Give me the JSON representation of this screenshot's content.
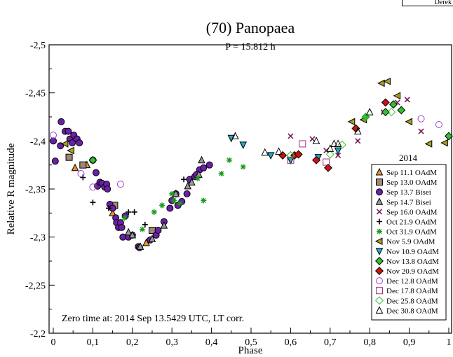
{
  "corner_label": "Derek",
  "chart_data": {
    "type": "scatter",
    "title": "(70) Panopaea",
    "subtitle": "P = 15.812 h",
    "xlabel": "Phase",
    "ylabel": "Relative R magnitude",
    "xlim": [
      0,
      1
    ],
    "ylim": [
      -2.2,
      -2.5
    ],
    "y_inverted": true,
    "x_ticks": [
      0,
      0.1,
      0.2,
      0.3,
      0.4,
      0.5,
      0.6,
      0.7,
      0.8,
      0.9,
      1
    ],
    "x_tick_labels": [
      "0",
      "0,1",
      "0,2",
      "0,3",
      "0,4",
      "0,5",
      "0,6",
      "0,7",
      "0,8",
      "0,9",
      "1"
    ],
    "y_ticks": [
      -2.2,
      -2.25,
      -2.3,
      -2.35,
      -2.4,
      -2.45,
      -2.5
    ],
    "y_tick_labels": [
      "-2,2",
      "-2,25",
      "-2,3",
      "-2,35",
      "-2,4",
      "-2,45",
      "-2,5"
    ],
    "annotation": "Zero time at: 2014 Sep 13.5429 UTC, LT corr.",
    "legend_title": "2014",
    "legend_position": "right",
    "series": [
      {
        "name": "Sep 11.1 OAdM",
        "marker": "triangle-up",
        "color": "#e8962a",
        "points": [
          [
            0.055,
            -2.372
          ],
          [
            0.15,
            -2.325
          ],
          [
            0.235,
            -2.294
          ],
          [
            0.085,
            -2.375
          ]
        ]
      },
      {
        "name": "Sep 13.0 OAdM",
        "marker": "square",
        "color": "#a08878",
        "points": [
          [
            0.04,
            -2.383
          ],
          [
            0.075,
            -2.375
          ],
          [
            0.155,
            -2.333
          ],
          [
            0.25,
            -2.307
          ]
        ]
      },
      {
        "name": "Sep 13.7 Bisei",
        "marker": "circle",
        "color": "#6a20a8",
        "points": [
          [
            0,
            -2.4
          ],
          [
            0.005,
            -2.379
          ],
          [
            0.018,
            -2.395
          ],
          [
            0.02,
            -2.42
          ],
          [
            0.03,
            -2.41
          ],
          [
            0.038,
            -2.41
          ],
          [
            0.042,
            -2.402
          ],
          [
            0.048,
            -2.398
          ],
          [
            0.052,
            -2.406
          ],
          [
            0.06,
            -2.402
          ],
          [
            0.066,
            -2.398
          ],
          [
            0.1,
            -2.38
          ],
          [
            0.108,
            -2.367
          ],
          [
            0.112,
            -2.353
          ],
          [
            0.118,
            -2.357
          ],
          [
            0.123,
            -2.356
          ],
          [
            0.13,
            -2.352
          ],
          [
            0.135,
            -2.355
          ],
          [
            0.137,
            -2.35
          ],
          [
            0.143,
            -2.334
          ],
          [
            0.15,
            -2.33
          ],
          [
            0.158,
            -2.32
          ],
          [
            0.16,
            -2.315
          ],
          [
            0.165,
            -2.31
          ],
          [
            0.17,
            -2.315
          ],
          [
            0.173,
            -2.31
          ],
          [
            0.176,
            -2.3
          ],
          [
            0.182,
            -2.322
          ],
          [
            0.19,
            -2.3
          ],
          [
            0.2,
            -2.302
          ],
          [
            0.215,
            -2.29
          ],
          [
            0.218,
            -2.289
          ],
          [
            0.245,
            -2.297
          ],
          [
            0.26,
            -2.302
          ],
          [
            0.265,
            -2.307
          ],
          [
            0.28,
            -2.316
          ],
          [
            0.295,
            -2.33
          ],
          [
            0.3,
            -2.338
          ],
          [
            0.31,
            -2.345
          ],
          [
            0.315,
            -2.333
          ],
          [
            0.325,
            -2.337
          ],
          [
            0.338,
            -2.345
          ],
          [
            0.345,
            -2.36
          ],
          [
            0.358,
            -2.363
          ],
          [
            0.362,
            -2.365
          ],
          [
            0.37,
            -2.37
          ],
          [
            0.38,
            -2.372
          ],
          [
            0.395,
            -2.375
          ]
        ]
      },
      {
        "name": "Sep 14.7 Bisei",
        "marker": "triangle-up",
        "color": "#9a9a9a",
        "points": [
          [
            0.19,
            -2.305
          ],
          [
            0.2,
            -2.302
          ],
          [
            0.22,
            -2.29
          ],
          [
            0.25,
            -2.298
          ],
          [
            0.28,
            -2.312
          ],
          [
            0.31,
            -2.345
          ],
          [
            0.34,
            -2.353
          ],
          [
            0.35,
            -2.357
          ],
          [
            0.368,
            -2.365
          ],
          [
            0.375,
            -2.38
          ]
        ]
      },
      {
        "name": "Sep 16.0 OAdM",
        "marker": "cross",
        "color": "#7a1a5a",
        "points": [
          [
            0.6,
            -2.405
          ],
          [
            0.655,
            -2.402
          ],
          [
            0.69,
            -2.39
          ],
          [
            0.72,
            -2.385
          ],
          [
            0.77,
            -2.4
          ],
          [
            0.835,
            -2.43
          ],
          [
            0.87,
            -2.44
          ],
          [
            0.895,
            -2.443
          ],
          [
            0.93,
            -2.41
          ]
        ]
      },
      {
        "name": "Oct 21.9 OAdM",
        "marker": "plus",
        "color": "#000000",
        "points": [
          [
            0.075,
            -2.362
          ],
          [
            0.1,
            -2.336
          ],
          [
            0.14,
            -2.33
          ],
          [
            0.19,
            -2.326
          ],
          [
            0.205,
            -2.326
          ],
          [
            0.232,
            -2.313
          ],
          [
            0.33,
            -2.36
          ]
        ]
      },
      {
        "name": "Oct 31.9 OAdM",
        "marker": "asterisk",
        "color": "#1a9a1a",
        "points": [
          [
            0.18,
            -2.32
          ],
          [
            0.225,
            -2.308
          ],
          [
            0.255,
            -2.326
          ],
          [
            0.275,
            -2.333
          ],
          [
            0.3,
            -2.345
          ],
          [
            0.305,
            -2.338
          ],
          [
            0.32,
            -2.335
          ],
          [
            0.365,
            -2.361
          ],
          [
            0.38,
            -2.338
          ],
          [
            0.425,
            -2.366
          ],
          [
            0.445,
            -2.38
          ],
          [
            0.48,
            -2.373
          ]
        ]
      },
      {
        "name": "Nov 5.9 OAdM",
        "marker": "triangle-left",
        "color": "#a8a020",
        "points": [
          [
            0.03,
            -2.397
          ],
          [
            0.045,
            -2.39
          ],
          [
            0.755,
            -2.42
          ],
          [
            0.785,
            -2.422
          ],
          [
            0.83,
            -2.46
          ],
          [
            0.845,
            -2.462
          ],
          [
            0.87,
            -2.447
          ],
          [
            0.9,
            -2.42
          ],
          [
            0.95,
            -2.397
          ],
          [
            0.99,
            -2.398
          ]
        ]
      },
      {
        "name": "Nov 10.9 OAdM",
        "marker": "triangle-down",
        "color": "#20a8c8",
        "points": [
          [
            0.45,
            -2.403
          ],
          [
            0.48,
            -2.396
          ],
          [
            0.55,
            -2.385
          ],
          [
            0.6,
            -2.38
          ],
          [
            0.67,
            -2.383
          ],
          [
            0.72,
            -2.39
          ]
        ]
      },
      {
        "name": "Nov 13.8 OAdM",
        "marker": "diamond",
        "color": "#30c030",
        "points": [
          [
            0.1,
            -2.38
          ],
          [
            0.79,
            -2.425
          ],
          [
            0.84,
            -2.43
          ],
          [
            0.86,
            -2.438
          ],
          [
            0.88,
            -2.432
          ],
          [
            1.0,
            -2.405
          ]
        ]
      },
      {
        "name": "Nov 20.9 OAdM",
        "marker": "diamond",
        "color": "#d01010",
        "points": [
          [
            0.58,
            -2.385
          ],
          [
            0.61,
            -2.385
          ],
          [
            0.62,
            -2.386
          ],
          [
            0.665,
            -2.38
          ],
          [
            0.695,
            -2.372
          ],
          [
            0.765,
            -2.413
          ],
          [
            0.84,
            -2.44
          ]
        ]
      },
      {
        "name": "Dec 12.8 OAdM",
        "marker": "circle-open",
        "color": "#a040d0",
        "points": [
          [
            0,
            -2.406
          ],
          [
            0.07,
            -2.366
          ],
          [
            0.1,
            -2.352
          ],
          [
            0.17,
            -2.355
          ],
          [
            0.93,
            -2.423
          ],
          [
            0.975,
            -2.417
          ]
        ]
      },
      {
        "name": "Dec 17.8 OAdM",
        "marker": "square-open",
        "color": "#a03080",
        "points": [
          [
            0.6,
            -2.38
          ],
          [
            0.63,
            -2.397
          ],
          [
            0.69,
            -2.378
          ]
        ]
      },
      {
        "name": "Dec 25.8 OAdM",
        "marker": "diamond-open",
        "color": "#30c030",
        "points": [
          [
            0.6,
            -2.385
          ],
          [
            0.7,
            -2.386
          ],
          [
            0.73,
            -2.396
          ],
          [
            0.79,
            -2.425
          ],
          [
            0.855,
            -2.43
          ]
        ]
      },
      {
        "name": "Dec 30.8 OAdM",
        "marker": "triangle-up-open",
        "color": "#000000",
        "points": [
          [
            0.46,
            -2.405
          ],
          [
            0.535,
            -2.388
          ],
          [
            0.57,
            -2.389
          ],
          [
            0.665,
            -2.4
          ],
          [
            0.7,
            -2.392
          ],
          [
            0.71,
            -2.397
          ],
          [
            0.72,
            -2.397
          ],
          [
            0.77,
            -2.41
          ],
          [
            0.8,
            -2.43
          ]
        ]
      }
    ]
  }
}
